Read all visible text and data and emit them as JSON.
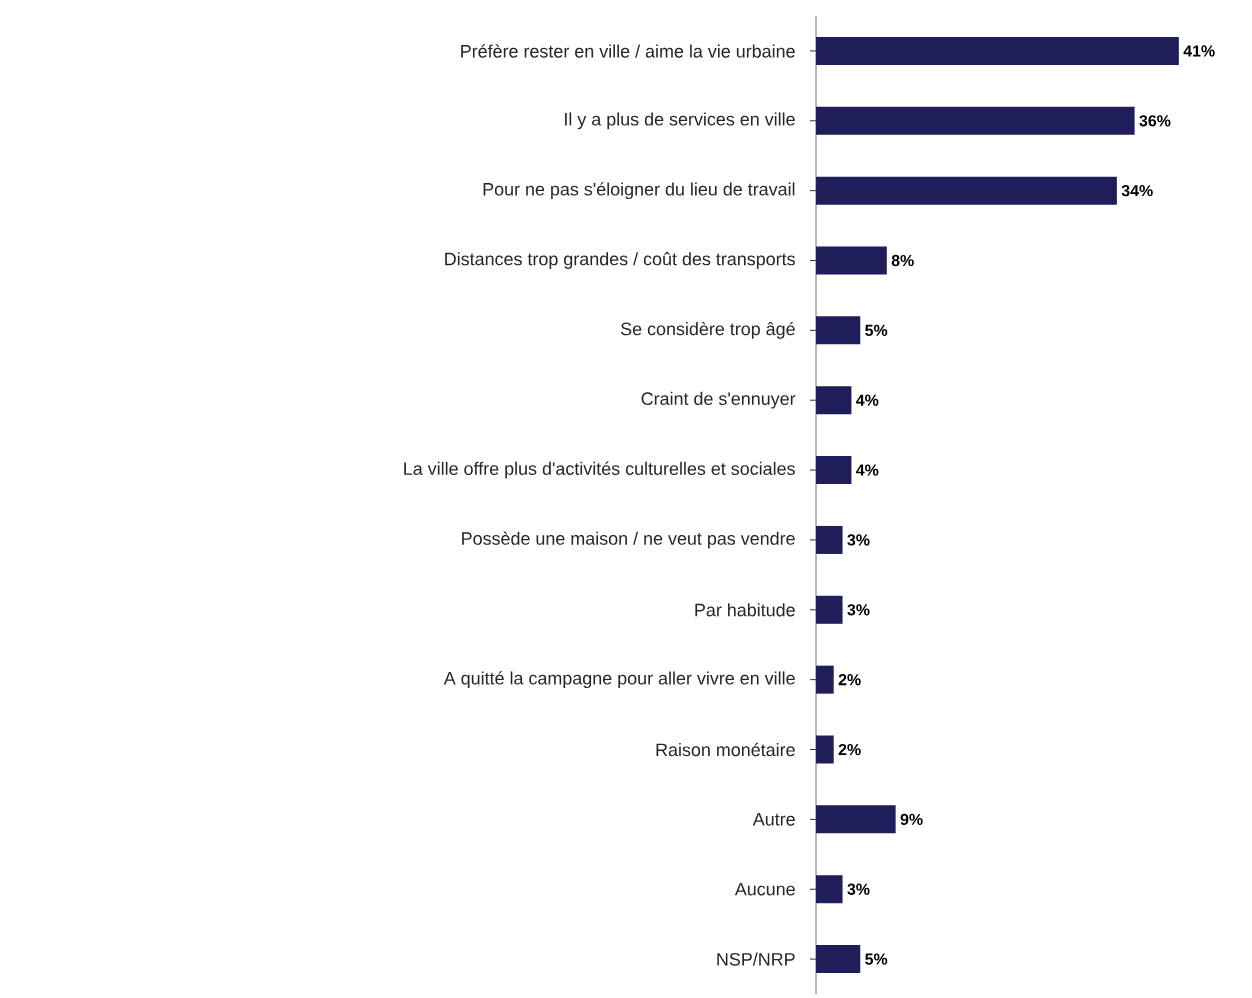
{
  "chart_data": {
    "type": "bar",
    "orientation": "horizontal",
    "color": "#1f1d5a",
    "categories": [
      "Préfère rester en ville / aime la vie urbaine",
      "Il y a plus de services en ville",
      "Pour ne pas s'éloigner du lieu de travail",
      "Distances trop grandes / coût des transports",
      "Se considère trop âgé",
      "Craint de s'ennuyer",
      "La ville offre plus d'activités culturelles et sociales",
      "Possède une maison / ne veut pas vendre",
      "Par habitude",
      "A quitté la campagne pour aller vivre en ville",
      "Raison monétaire",
      "Autre",
      "Aucune",
      "NSP/NRP"
    ],
    "values": [
      41,
      36,
      34,
      8,
      5,
      4,
      4,
      3,
      3,
      2,
      2,
      9,
      3,
      5
    ],
    "value_labels": [
      "41%",
      "36%",
      "34%",
      "8%",
      "5%",
      "4%",
      "4%",
      "3%",
      "3%",
      "2%",
      "2%",
      "9%",
      "3%",
      "5%"
    ]
  }
}
